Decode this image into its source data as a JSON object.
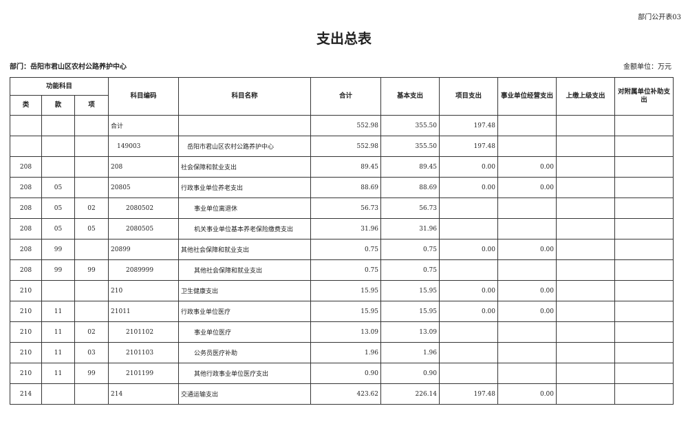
{
  "corner_label": "部门公开表03",
  "title": "支出总表",
  "department": "部门：岳阳市君山区农村公路养护中心",
  "unit": "金额单位：万元",
  "headers": {
    "func": "功能科目",
    "lei": "类",
    "kuan": "款",
    "xiang": "项",
    "code": "科目编码",
    "name": "科目名称",
    "total": "合计",
    "basic": "基本支出",
    "project": "项目支出",
    "business": "事业单位经营支出",
    "upper": "上缴上级支出",
    "subsidy": "对附属单位补助支出"
  },
  "rows": [
    {
      "lei": "",
      "kuan": "",
      "xiang": "",
      "code": "合计",
      "name": "",
      "total": "552.98",
      "basic": "355.50",
      "project": "197.48",
      "business": "",
      "upper": "",
      "subsidy": ""
    },
    {
      "lei": "",
      "kuan": "",
      "xiang": "",
      "code": "149003",
      "name": "岳阳市君山区农村公路养护中心",
      "total": "552.98",
      "basic": "355.50",
      "project": "197.48",
      "business": "",
      "upper": "",
      "subsidy": ""
    },
    {
      "lei": "208",
      "kuan": "",
      "xiang": "",
      "code": "208",
      "name": "社会保障和就业支出",
      "total": "89.45",
      "basic": "89.45",
      "project": "0.00",
      "business": "0.00",
      "upper": "",
      "subsidy": ""
    },
    {
      "lei": "208",
      "kuan": "05",
      "xiang": "",
      "code": "20805",
      "name": "行政事业单位养老支出",
      "total": "88.69",
      "basic": "88.69",
      "project": "0.00",
      "business": "0.00",
      "upper": "",
      "subsidy": ""
    },
    {
      "lei": "208",
      "kuan": "05",
      "xiang": "02",
      "code": "2080502",
      "name": "事业单位离退休",
      "total": "56.73",
      "basic": "56.73",
      "project": "",
      "business": "",
      "upper": "",
      "subsidy": ""
    },
    {
      "lei": "208",
      "kuan": "05",
      "xiang": "05",
      "code": "2080505",
      "name": "机关事业单位基本养老保险缴费支出",
      "total": "31.96",
      "basic": "31.96",
      "project": "",
      "business": "",
      "upper": "",
      "subsidy": ""
    },
    {
      "lei": "208",
      "kuan": "99",
      "xiang": "",
      "code": "20899",
      "name": "其他社会保障和就业支出",
      "total": "0.75",
      "basic": "0.75",
      "project": "0.00",
      "business": "0.00",
      "upper": "",
      "subsidy": ""
    },
    {
      "lei": "208",
      "kuan": "99",
      "xiang": "99",
      "code": "2089999",
      "name": "其他社会保障和就业支出",
      "total": "0.75",
      "basic": "0.75",
      "project": "",
      "business": "",
      "upper": "",
      "subsidy": ""
    },
    {
      "lei": "210",
      "kuan": "",
      "xiang": "",
      "code": "210",
      "name": "卫生健康支出",
      "total": "15.95",
      "basic": "15.95",
      "project": "0.00",
      "business": "0.00",
      "upper": "",
      "subsidy": ""
    },
    {
      "lei": "210",
      "kuan": "11",
      "xiang": "",
      "code": "21011",
      "name": "行政事业单位医疗",
      "total": "15.95",
      "basic": "15.95",
      "project": "0.00",
      "business": "0.00",
      "upper": "",
      "subsidy": ""
    },
    {
      "lei": "210",
      "kuan": "11",
      "xiang": "02",
      "code": "2101102",
      "name": "事业单位医疗",
      "total": "13.09",
      "basic": "13.09",
      "project": "",
      "business": "",
      "upper": "",
      "subsidy": ""
    },
    {
      "lei": "210",
      "kuan": "11",
      "xiang": "03",
      "code": "2101103",
      "name": "公务员医疗补助",
      "total": "1.96",
      "basic": "1.96",
      "project": "",
      "business": "",
      "upper": "",
      "subsidy": ""
    },
    {
      "lei": "210",
      "kuan": "11",
      "xiang": "99",
      "code": "2101199",
      "name": "其他行政事业单位医疗支出",
      "total": "0.90",
      "basic": "0.90",
      "project": "",
      "business": "",
      "upper": "",
      "subsidy": ""
    },
    {
      "lei": "214",
      "kuan": "",
      "xiang": "",
      "code": "214",
      "name": "交通运输支出",
      "total": "423.62",
      "basic": "226.14",
      "project": "197.48",
      "business": "0.00",
      "upper": "",
      "subsidy": ""
    }
  ]
}
